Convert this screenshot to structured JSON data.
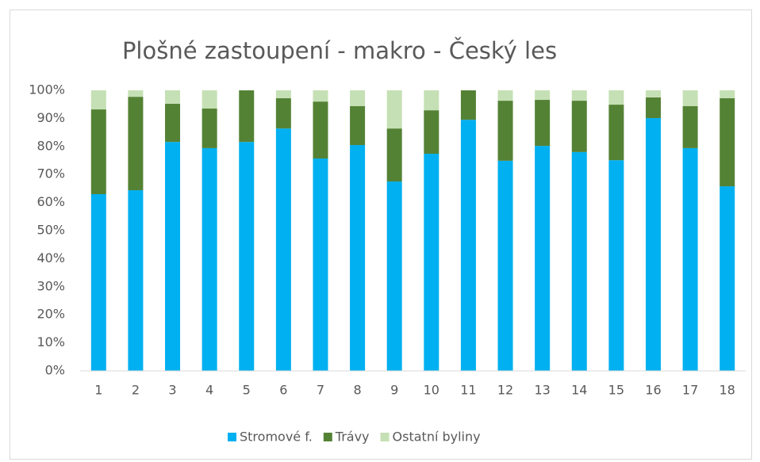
{
  "chart_data": {
    "type": "stacked_bar",
    "title": "Plošné zastoupení - makro - Český les",
    "categories": [
      "1",
      "2",
      "3",
      "4",
      "5",
      "6",
      "7",
      "8",
      "9",
      "10",
      "11",
      "12",
      "13",
      "14",
      "15",
      "16",
      "17",
      "18"
    ],
    "series": [
      {
        "name": "Stromové f.",
        "color": "#00b0f0",
        "values": [
          63.0,
          64.4,
          81.6,
          79.4,
          81.6,
          86.4,
          75.7,
          80.5,
          67.5,
          77.4,
          89.5,
          74.9,
          80.2,
          78.0,
          75.1,
          90.1,
          79.4,
          65.8
        ]
      },
      {
        "name": "Trávy",
        "color": "#548235",
        "values": [
          30.2,
          33.3,
          13.6,
          14.1,
          18.4,
          10.8,
          20.3,
          13.9,
          18.9,
          15.5,
          10.5,
          21.4,
          16.4,
          18.3,
          19.8,
          7.4,
          15.0,
          31.4
        ]
      },
      {
        "name": "Ostatní byliny",
        "color": "#c5e0b4",
        "values": [
          6.8,
          2.3,
          4.8,
          6.5,
          0,
          2.8,
          4.0,
          5.6,
          13.6,
          7.1,
          0,
          3.7,
          3.4,
          3.7,
          5.1,
          2.5,
          5.6,
          2.8
        ]
      }
    ],
    "ylim": [
      0,
      100
    ],
    "yticks": [
      {
        "value": 0,
        "label": "0%"
      },
      {
        "value": 10,
        "label": "10%"
      },
      {
        "value": 20,
        "label": "20%"
      },
      {
        "value": 30,
        "label": "30%"
      },
      {
        "value": 40,
        "label": "40%"
      },
      {
        "value": 50,
        "label": "50%"
      },
      {
        "value": 60,
        "label": "60%"
      },
      {
        "value": 70,
        "label": "70%"
      },
      {
        "value": 80,
        "label": "80%"
      },
      {
        "value": 90,
        "label": "90%"
      },
      {
        "value": 100,
        "label": "100%"
      }
    ],
    "grid": false,
    "legend": "bottom"
  }
}
